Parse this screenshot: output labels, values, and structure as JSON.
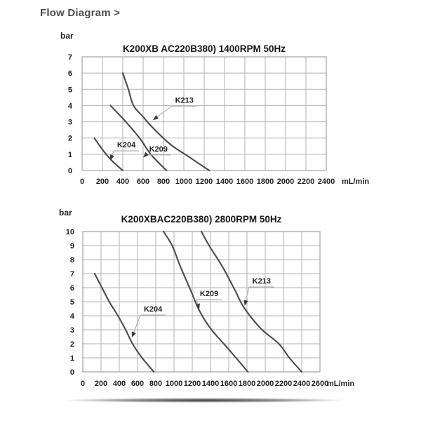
{
  "header": {
    "title": "Flow Diagram >"
  },
  "colors": {
    "curve": "#4b4b4b",
    "grid": "#b2b2b2",
    "plot_border": "#8f8f8f",
    "tick_text": "#1f1f1f",
    "leader_line": "#b0b0b0",
    "arrowhead": "#3d3d3d",
    "header_text": "#4d4d4d"
  },
  "chart_data": [
    {
      "type": "line",
      "title": "K200XB AC220B380) 1400RPM 50Hz",
      "y_axis_unit": "bar",
      "x_axis_unit": "mL/min",
      "xlim": [
        0,
        2400
      ],
      "ylim": [
        0,
        7
      ],
      "grid": true,
      "x_ticks": [
        0,
        200,
        400,
        600,
        800,
        1000,
        1200,
        1400,
        1600,
        1800,
        2000,
        2200,
        2400
      ],
      "y_ticks": [
        0,
        1,
        2,
        3,
        4,
        5,
        6,
        7
      ],
      "series": [
        {
          "name": "K204",
          "points": [
            [
              120,
              2
            ],
            [
              170,
              1.55
            ],
            [
              230,
              1.05
            ],
            [
              310,
              0.5
            ],
            [
              400,
              0
            ]
          ],
          "label_at": [
            435,
            1.6
          ],
          "arrow_to": [
            276,
            0.62
          ]
        },
        {
          "name": "K209",
          "points": [
            [
              280,
              4
            ],
            [
              355,
              3.5
            ],
            [
              430,
              3
            ],
            [
              565,
              2
            ],
            [
              675,
              1
            ],
            [
              830,
              0
            ]
          ],
          "label_at": [
            750,
            1.35
          ],
          "arrow_to": [
            600,
            0.8
          ]
        },
        {
          "name": "K213",
          "points": [
            [
              400,
              6
            ],
            [
              455,
              5
            ],
            [
              505,
              4
            ],
            [
              600,
              3.3
            ],
            [
              700,
              2.6
            ],
            [
              870,
              1.6
            ],
            [
              1060,
              0.8
            ],
            [
              1250,
              0
            ]
          ],
          "label_at": [
            1005,
            4.35
          ],
          "arrow_to": [
            695,
            3.1
          ]
        }
      ]
    },
    {
      "type": "line",
      "title": "K200XBAC220B380) 2800RPM 50Hz",
      "y_axis_unit": "bar",
      "x_axis_unit": "mL/min",
      "xlim": [
        0,
        2600
      ],
      "ylim": [
        0,
        10
      ],
      "grid": true,
      "x_ticks": [
        0,
        200,
        400,
        600,
        800,
        1000,
        1200,
        1400,
        1600,
        1800,
        2000,
        2200,
        2400,
        2600
      ],
      "y_ticks": [
        0,
        1,
        2,
        3,
        4,
        5,
        6,
        7,
        8,
        9,
        10
      ],
      "series": [
        {
          "name": "K204",
          "points": [
            [
              130,
              7
            ],
            [
              210,
              6
            ],
            [
              290,
              5
            ],
            [
              385,
              4
            ],
            [
              470,
              3
            ],
            [
              545,
              2
            ],
            [
              650,
              1
            ],
            [
              780,
              0
            ]
          ],
          "label_at": [
            770,
            4.5
          ],
          "arrow_to": [
            538,
            2.45
          ]
        },
        {
          "name": "K209",
          "points": [
            [
              885,
              10
            ],
            [
              980,
              9
            ],
            [
              1070,
              7.5
            ],
            [
              1190,
              5.7
            ],
            [
              1275,
              4.4
            ],
            [
              1400,
              3.1
            ],
            [
              1560,
              1.9
            ],
            [
              1680,
              1
            ],
            [
              1810,
              0
            ]
          ],
          "label_at": [
            1385,
            5.6
          ],
          "arrow_to": [
            1277,
            4.45
          ]
        },
        {
          "name": "K213",
          "points": [
            [
              1300,
              10
            ],
            [
              1385,
              9
            ],
            [
              1530,
              7.5
            ],
            [
              1670,
              5.8
            ],
            [
              1765,
              4.6
            ],
            [
              1950,
              3.1
            ],
            [
              2150,
              2
            ],
            [
              2265,
              1
            ],
            [
              2400,
              0
            ]
          ],
          "label_at": [
            1960,
            6.5
          ],
          "arrow_to": [
            1775,
            4.7
          ]
        }
      ]
    }
  ]
}
